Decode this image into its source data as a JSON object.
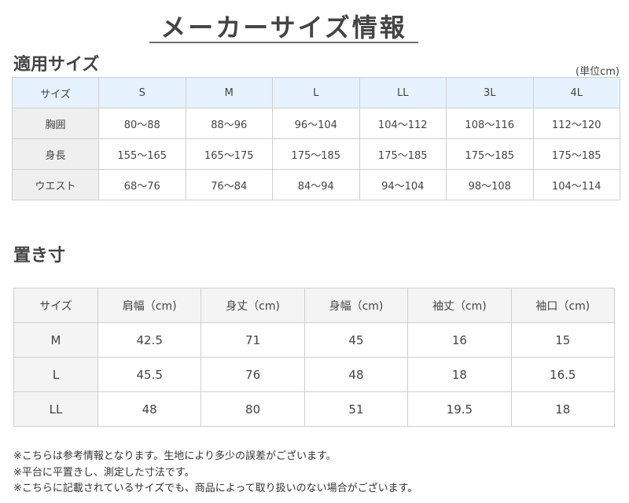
{
  "title": "メーカーサイズ情報",
  "applicable": {
    "heading": "適用サイズ",
    "unit": "(単位cm)",
    "header": [
      "サイズ",
      "S",
      "M",
      "L",
      "LL",
      "3L",
      "4L"
    ],
    "rows": [
      [
        "胸囲",
        "80〜88",
        "88〜96",
        "96〜104",
        "104〜112",
        "108〜116",
        "112〜120"
      ],
      [
        "身長",
        "155〜165",
        "165〜175",
        "175〜185",
        "175〜185",
        "175〜185",
        "175〜185"
      ],
      [
        "ウエスト",
        "68〜76",
        "76〜84",
        "84〜94",
        "94〜104",
        "98〜108",
        "104〜114"
      ]
    ]
  },
  "measurements": {
    "heading": "置き寸",
    "header": [
      "サイズ",
      "肩幅（cm)",
      "身丈（cm)",
      "身幅（cm)",
      "袖丈（cm)",
      "袖口（cm)"
    ],
    "rows": [
      [
        "M",
        "42.5",
        "71",
        "45",
        "16",
        "15"
      ],
      [
        "L",
        "45.5",
        "76",
        "48",
        "18",
        "16.5"
      ],
      [
        "LL",
        "48",
        "80",
        "51",
        "19.5",
        "18"
      ]
    ]
  },
  "notes": [
    "※こちらは参考情報となります。生地により多少の誤差がございます。",
    "※平台に平置きし、測定した寸法です。",
    "※こちらに記載されているサイズでも、商品によって取り扱いのない場合がございます。"
  ]
}
